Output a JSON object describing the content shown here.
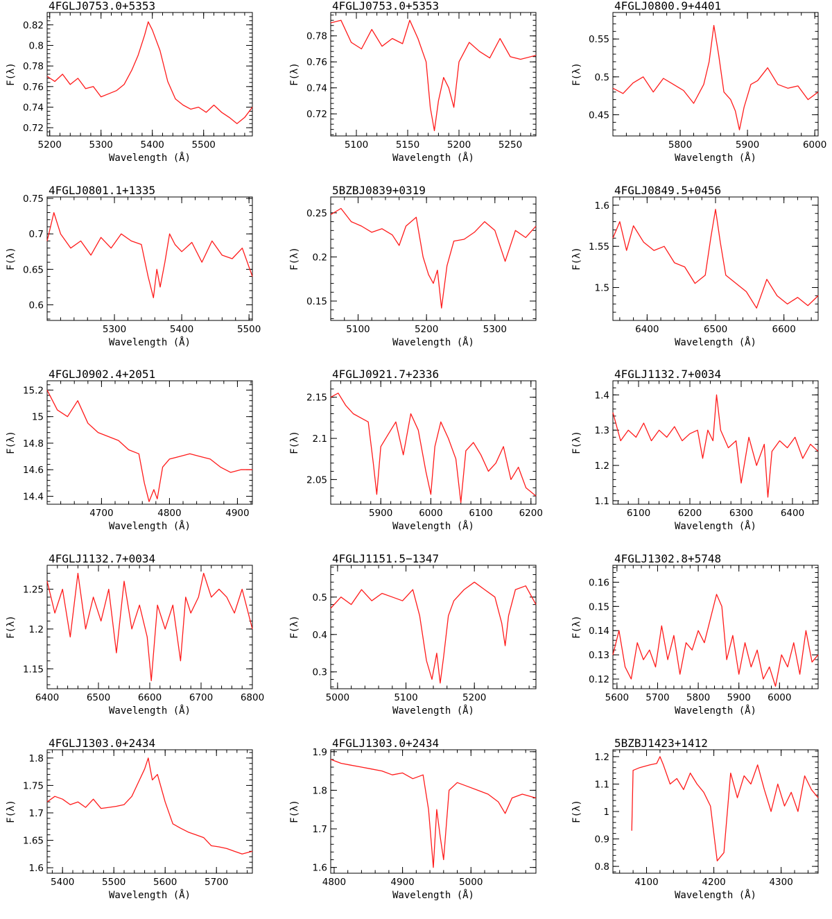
{
  "figure": {
    "xlabel": "Wavelength (Å)",
    "ylabel": "F(λ)",
    "line_color": "#ff1a1a"
  },
  "chart_data": [
    {
      "type": "line",
      "title": "4FGLJ0753.0+5353",
      "xlim": [
        5195,
        5595
      ],
      "ylim": [
        0.712,
        0.832
      ],
      "xticks": [
        5200,
        5300,
        5400,
        5500
      ],
      "yticks": [
        0.72,
        0.74,
        0.76,
        0.78,
        0.8,
        0.82
      ],
      "ytick_labels": [
        "0.72",
        "0.74",
        "0.76",
        "0.78",
        "0.8",
        "0.82"
      ],
      "x": [
        5195,
        5210,
        5225,
        5240,
        5255,
        5270,
        5285,
        5300,
        5315,
        5330,
        5345,
        5360,
        5372,
        5385,
        5392,
        5400,
        5415,
        5430,
        5445,
        5460,
        5475,
        5490,
        5505,
        5520,
        5535,
        5550,
        5565,
        5580,
        5595
      ],
      "y": [
        0.77,
        0.765,
        0.772,
        0.762,
        0.768,
        0.758,
        0.76,
        0.75,
        0.753,
        0.756,
        0.762,
        0.776,
        0.79,
        0.81,
        0.823,
        0.815,
        0.795,
        0.765,
        0.748,
        0.742,
        0.738,
        0.74,
        0.735,
        0.742,
        0.735,
        0.73,
        0.724,
        0.73,
        0.74
      ]
    },
    {
      "type": "line",
      "title": "4FGLJ0753.0+5353",
      "xlim": [
        5075,
        5275
      ],
      "ylim": [
        0.703,
        0.798
      ],
      "xticks": [
        5100,
        5150,
        5200,
        5250
      ],
      "yticks": [
        0.72,
        0.74,
        0.76,
        0.78
      ],
      "ytick_labels": [
        "0.72",
        "0.74",
        "0.76",
        "0.78"
      ],
      "x": [
        5075,
        5085,
        5095,
        5105,
        5115,
        5125,
        5135,
        5145,
        5152,
        5160,
        5168,
        5172,
        5176,
        5180,
        5185,
        5190,
        5195,
        5200,
        5210,
        5220,
        5230,
        5240,
        5250,
        5260,
        5275
      ],
      "y": [
        0.79,
        0.792,
        0.775,
        0.77,
        0.785,
        0.772,
        0.778,
        0.774,
        0.792,
        0.778,
        0.76,
        0.725,
        0.707,
        0.73,
        0.748,
        0.74,
        0.725,
        0.76,
        0.775,
        0.768,
        0.763,
        0.778,
        0.764,
        0.762,
        0.765
      ]
    },
    {
      "type": "line",
      "title": "4FGLJ0800.9+4401",
      "xlim": [
        5700,
        6005
      ],
      "ylim": [
        0.422,
        0.585
      ],
      "xticks": [
        5800,
        5900,
        6000
      ],
      "yticks": [
        0.45,
        0.5,
        0.55
      ],
      "ytick_labels": [
        "0.45",
        "0.5",
        "0.55"
      ],
      "x": [
        5700,
        5715,
        5730,
        5745,
        5760,
        5775,
        5790,
        5805,
        5820,
        5835,
        5843,
        5850,
        5857,
        5865,
        5875,
        5882,
        5888,
        5895,
        5905,
        5915,
        5930,
        5945,
        5960,
        5975,
        5990,
        6005
      ],
      "y": [
        0.485,
        0.478,
        0.492,
        0.5,
        0.48,
        0.498,
        0.49,
        0.482,
        0.465,
        0.49,
        0.52,
        0.568,
        0.53,
        0.48,
        0.47,
        0.455,
        0.43,
        0.46,
        0.49,
        0.495,
        0.512,
        0.49,
        0.485,
        0.488,
        0.47,
        0.48
      ]
    },
    {
      "type": "line",
      "title": "4FGLJ0801.1+1335",
      "xlim": [
        5200,
        5505
      ],
      "ylim": [
        0.578,
        0.752
      ],
      "xticks": [
        5300,
        5400,
        5500
      ],
      "yticks": [
        0.6,
        0.65,
        0.7,
        0.75
      ],
      "ytick_labels": [
        "0.6",
        "0.65",
        "0.7",
        "0.75"
      ],
      "x": [
        5200,
        5210,
        5220,
        5235,
        5250,
        5265,
        5280,
        5295,
        5310,
        5325,
        5340,
        5350,
        5358,
        5363,
        5368,
        5375,
        5382,
        5390,
        5400,
        5415,
        5430,
        5445,
        5460,
        5475,
        5490,
        5505
      ],
      "y": [
        0.69,
        0.73,
        0.7,
        0.68,
        0.69,
        0.67,
        0.695,
        0.68,
        0.7,
        0.69,
        0.685,
        0.64,
        0.61,
        0.65,
        0.625,
        0.66,
        0.7,
        0.685,
        0.675,
        0.688,
        0.66,
        0.69,
        0.67,
        0.665,
        0.68,
        0.64
      ]
    },
    {
      "type": "line",
      "title": "5BZBJ0839+0319",
      "xlim": [
        5060,
        5360
      ],
      "ylim": [
        0.128,
        0.268
      ],
      "xticks": [
        5100,
        5200,
        5300
      ],
      "yticks": [
        0.15,
        0.2,
        0.25
      ],
      "ytick_labels": [
        "0.15",
        "0.2",
        "0.25"
      ],
      "x": [
        5060,
        5075,
        5090,
        5105,
        5120,
        5135,
        5150,
        5160,
        5170,
        5185,
        5195,
        5203,
        5210,
        5216,
        5222,
        5230,
        5240,
        5255,
        5270,
        5285,
        5300,
        5315,
        5330,
        5345,
        5360
      ],
      "y": [
        0.248,
        0.255,
        0.24,
        0.235,
        0.228,
        0.232,
        0.225,
        0.213,
        0.235,
        0.245,
        0.2,
        0.18,
        0.17,
        0.185,
        0.142,
        0.19,
        0.218,
        0.22,
        0.228,
        0.24,
        0.23,
        0.195,
        0.23,
        0.222,
        0.235
      ]
    },
    {
      "type": "line",
      "title": "4FGLJ0849.5+0456",
      "xlim": [
        6350,
        6650
      ],
      "ylim": [
        1.46,
        1.61
      ],
      "xticks": [
        6400,
        6500,
        6600
      ],
      "yticks": [
        1.5,
        1.55,
        1.6
      ],
      "ytick_labels": [
        "1.5",
        "1.55",
        "1.6"
      ],
      "x": [
        6350,
        6360,
        6370,
        6380,
        6395,
        6410,
        6425,
        6440,
        6455,
        6470,
        6485,
        6493,
        6500,
        6507,
        6515,
        6530,
        6545,
        6560,
        6575,
        6590,
        6605,
        6620,
        6635,
        6650
      ],
      "y": [
        1.56,
        1.58,
        1.545,
        1.575,
        1.555,
        1.545,
        1.55,
        1.53,
        1.525,
        1.505,
        1.515,
        1.56,
        1.595,
        1.555,
        1.515,
        1.505,
        1.495,
        1.475,
        1.51,
        1.49,
        1.48,
        1.488,
        1.478,
        1.49
      ]
    },
    {
      "type": "line",
      "title": "4FGLJ0902.4+2051",
      "xlim": [
        4620,
        4922
      ],
      "ylim": [
        14.34,
        15.27
      ],
      "xticks": [
        4700,
        4800,
        4900
      ],
      "yticks": [
        14.4,
        14.6,
        14.8,
        15,
        15.2
      ],
      "ytick_labels": [
        "14.4",
        "14.6",
        "14.8",
        "15",
        "15.2"
      ],
      "x": [
        4620,
        4635,
        4650,
        4665,
        4680,
        4695,
        4710,
        4725,
        4740,
        4755,
        4763,
        4770,
        4777,
        4782,
        4790,
        4800,
        4815,
        4830,
        4845,
        4860,
        4875,
        4890,
        4905,
        4922
      ],
      "y": [
        15.2,
        15.05,
        15.0,
        15.12,
        14.95,
        14.88,
        14.85,
        14.82,
        14.75,
        14.72,
        14.5,
        14.36,
        14.45,
        14.38,
        14.62,
        14.68,
        14.7,
        14.72,
        14.7,
        14.68,
        14.62,
        14.58,
        14.6,
        14.6
      ]
    },
    {
      "type": "line",
      "title": "4FGLJ0921.7+2336",
      "xlim": [
        5800,
        6210
      ],
      "ylim": [
        2.02,
        2.17
      ],
      "xticks": [
        5900,
        6000,
        6100,
        6200
      ],
      "yticks": [
        2.05,
        2.1,
        2.15
      ],
      "ytick_labels": [
        "2.05",
        "2.1",
        "2.15"
      ],
      "x": [
        5800,
        5815,
        5830,
        5845,
        5860,
        5875,
        5885,
        5892,
        5900,
        5915,
        5930,
        5945,
        5960,
        5975,
        5990,
        6000,
        6008,
        6020,
        6035,
        6050,
        6060,
        6070,
        6085,
        6100,
        6115,
        6130,
        6145,
        6160,
        6175,
        6190,
        6210
      ],
      "y": [
        2.15,
        2.155,
        2.14,
        2.13,
        2.125,
        2.12,
        2.07,
        2.032,
        2.09,
        2.105,
        2.12,
        2.08,
        2.13,
        2.11,
        2.06,
        2.032,
        2.09,
        2.12,
        2.1,
        2.075,
        2.022,
        2.085,
        2.095,
        2.08,
        2.06,
        2.07,
        2.09,
        2.05,
        2.065,
        2.04,
        2.03
      ]
    },
    {
      "type": "line",
      "title": "4FGLJ1132.7+0034",
      "xlim": [
        6050,
        6450
      ],
      "ylim": [
        1.09,
        1.44
      ],
      "xticks": [
        6100,
        6200,
        6300,
        6400
      ],
      "yticks": [
        1.1,
        1.2,
        1.3,
        1.4
      ],
      "ytick_labels": [
        "1.1",
        "1.2",
        "1.3",
        "1.4"
      ],
      "x": [
        6050,
        6065,
        6080,
        6095,
        6110,
        6125,
        6140,
        6155,
        6170,
        6185,
        6200,
        6215,
        6225,
        6235,
        6245,
        6252,
        6260,
        6275,
        6290,
        6300,
        6315,
        6330,
        6345,
        6352,
        6360,
        6375,
        6390,
        6405,
        6420,
        6435,
        6450
      ],
      "y": [
        1.35,
        1.27,
        1.3,
        1.28,
        1.32,
        1.27,
        1.3,
        1.28,
        1.31,
        1.27,
        1.29,
        1.3,
        1.22,
        1.3,
        1.27,
        1.4,
        1.3,
        1.25,
        1.27,
        1.15,
        1.28,
        1.2,
        1.26,
        1.11,
        1.24,
        1.27,
        1.25,
        1.28,
        1.22,
        1.26,
        1.24
      ]
    },
    {
      "type": "line",
      "title": "4FGLJ1132.7+0034",
      "xlim": [
        6400,
        6800
      ],
      "ylim": [
        1.125,
        1.28
      ],
      "xticks": [
        6400,
        6500,
        6600,
        6700,
        6800
      ],
      "yticks": [
        1.15,
        1.2,
        1.25
      ],
      "ytick_labels": [
        "1.15",
        "1.2",
        "1.25"
      ],
      "x": [
        6400,
        6415,
        6430,
        6445,
        6460,
        6475,
        6490,
        6505,
        6520,
        6535,
        6550,
        6565,
        6580,
        6595,
        6603,
        6615,
        6630,
        6645,
        6660,
        6670,
        6680,
        6695,
        6705,
        6720,
        6735,
        6750,
        6765,
        6780,
        6800
      ],
      "y": [
        1.26,
        1.22,
        1.25,
        1.19,
        1.27,
        1.2,
        1.24,
        1.21,
        1.25,
        1.17,
        1.26,
        1.2,
        1.23,
        1.19,
        1.135,
        1.23,
        1.2,
        1.23,
        1.16,
        1.24,
        1.22,
        1.24,
        1.27,
        1.24,
        1.25,
        1.24,
        1.22,
        1.25,
        1.2
      ]
    },
    {
      "type": "line",
      "title": "4FGLJ1151.5−1347",
      "xlim": [
        4990,
        5290
      ],
      "ylim": [
        0.255,
        0.585
      ],
      "xticks": [
        5000,
        5100,
        5200
      ],
      "yticks": [
        0.3,
        0.4,
        0.5
      ],
      "ytick_labels": [
        "0.3",
        "0.4",
        "0.5"
      ],
      "x": [
        4990,
        5005,
        5020,
        5035,
        5050,
        5065,
        5080,
        5095,
        5110,
        5120,
        5130,
        5138,
        5145,
        5150,
        5155,
        5162,
        5170,
        5185,
        5200,
        5215,
        5230,
        5240,
        5245,
        5250,
        5260,
        5275,
        5290
      ],
      "y": [
        0.47,
        0.5,
        0.48,
        0.52,
        0.49,
        0.51,
        0.5,
        0.49,
        0.52,
        0.45,
        0.33,
        0.28,
        0.35,
        0.27,
        0.34,
        0.45,
        0.49,
        0.52,
        0.54,
        0.52,
        0.5,
        0.43,
        0.37,
        0.45,
        0.52,
        0.53,
        0.48
      ]
    },
    {
      "type": "line",
      "title": "4FGLJ1302.8+5748",
      "xlim": [
        5590,
        6095
      ],
      "ylim": [
        0.116,
        0.167
      ],
      "xticks": [
        5600,
        5700,
        5800,
        5900,
        6000
      ],
      "yticks": [
        0.12,
        0.13,
        0.14,
        0.15,
        0.16
      ],
      "ytick_labels": [
        "0.12",
        "0.13",
        "0.14",
        "0.15",
        "0.16"
      ],
      "x": [
        5590,
        5605,
        5620,
        5635,
        5650,
        5665,
        5680,
        5695,
        5710,
        5725,
        5740,
        5755,
        5770,
        5785,
        5800,
        5815,
        5830,
        5845,
        5858,
        5870,
        5885,
        5900,
        5915,
        5930,
        5945,
        5960,
        5975,
        5990,
        6005,
        6020,
        6035,
        6050,
        6065,
        6080,
        6095
      ],
      "y": [
        0.13,
        0.14,
        0.125,
        0.12,
        0.135,
        0.128,
        0.132,
        0.125,
        0.142,
        0.128,
        0.138,
        0.122,
        0.135,
        0.132,
        0.14,
        0.135,
        0.145,
        0.155,
        0.15,
        0.128,
        0.138,
        0.122,
        0.135,
        0.125,
        0.132,
        0.12,
        0.125,
        0.117,
        0.13,
        0.125,
        0.135,
        0.122,
        0.14,
        0.127,
        0.13
      ]
    },
    {
      "type": "line",
      "title": "4FGLJ1303.0+2434",
      "xlim": [
        5370,
        5770
      ],
      "ylim": [
        1.59,
        1.815
      ],
      "xticks": [
        5400,
        5500,
        5600,
        5700
      ],
      "yticks": [
        1.6,
        1.65,
        1.7,
        1.75,
        1.8
      ],
      "ytick_labels": [
        "1.6",
        "1.65",
        "1.7",
        "1.75",
        "1.8"
      ],
      "x": [
        5370,
        5385,
        5400,
        5415,
        5430,
        5445,
        5460,
        5475,
        5490,
        5505,
        5520,
        5535,
        5550,
        5560,
        5567,
        5575,
        5585,
        5600,
        5615,
        5630,
        5645,
        5660,
        5675,
        5690,
        5705,
        5720,
        5735,
        5750,
        5770
      ],
      "y": [
        1.72,
        1.73,
        1.725,
        1.715,
        1.72,
        1.71,
        1.725,
        1.708,
        1.71,
        1.712,
        1.715,
        1.73,
        1.76,
        1.78,
        1.8,
        1.76,
        1.77,
        1.72,
        1.68,
        1.672,
        1.665,
        1.66,
        1.655,
        1.64,
        1.638,
        1.635,
        1.63,
        1.625,
        1.63
      ]
    },
    {
      "type": "line",
      "title": "4FGLJ1303.0+2434",
      "xlim": [
        4795,
        5095
      ],
      "ylim": [
        1.585,
        1.905
      ],
      "xticks": [
        4800,
        4900,
        5000
      ],
      "yticks": [
        1.6,
        1.7,
        1.8,
        1.9
      ],
      "ytick_labels": [
        "1.6",
        "1.7",
        "1.8",
        "1.9"
      ],
      "x": [
        4795,
        4810,
        4825,
        4840,
        4855,
        4870,
        4885,
        4900,
        4915,
        4930,
        4938,
        4945,
        4950,
        4955,
        4960,
        4968,
        4980,
        4995,
        5010,
        5025,
        5040,
        5050,
        5060,
        5075,
        5095
      ],
      "y": [
        1.88,
        1.87,
        1.865,
        1.86,
        1.855,
        1.85,
        1.84,
        1.845,
        1.83,
        1.84,
        1.75,
        1.6,
        1.75,
        1.68,
        1.62,
        1.8,
        1.82,
        1.81,
        1.8,
        1.79,
        1.77,
        1.74,
        1.78,
        1.79,
        1.78
      ]
    },
    {
      "type": "line",
      "title": "5BZBJ1423+1412",
      "xlim": [
        4050,
        4355
      ],
      "ylim": [
        0.775,
        1.225
      ],
      "xticks": [
        4100,
        4200,
        4300
      ],
      "yticks": [
        0.8,
        0.9,
        1,
        1.1,
        1.2
      ],
      "ytick_labels": [
        "0.8",
        "0.9",
        "1",
        "1.1",
        "1.2"
      ],
      "x": [
        4078,
        4080,
        4090,
        4105,
        4115,
        4120,
        4125,
        4135,
        4145,
        4155,
        4165,
        4175,
        4185,
        4195,
        4205,
        4215,
        4225,
        4235,
        4245,
        4255,
        4265,
        4275,
        4285,
        4295,
        4305,
        4315,
        4325,
        4335,
        4345,
        4355
      ],
      "y": [
        0.93,
        1.15,
        1.16,
        1.17,
        1.175,
        1.2,
        1.17,
        1.1,
        1.12,
        1.08,
        1.14,
        1.1,
        1.07,
        1.02,
        0.82,
        0.85,
        1.14,
        1.05,
        1.13,
        1.1,
        1.17,
        1.08,
        1.0,
        1.1,
        1.02,
        1.07,
        1.0,
        1.13,
        1.08,
        1.05
      ]
    }
  ]
}
